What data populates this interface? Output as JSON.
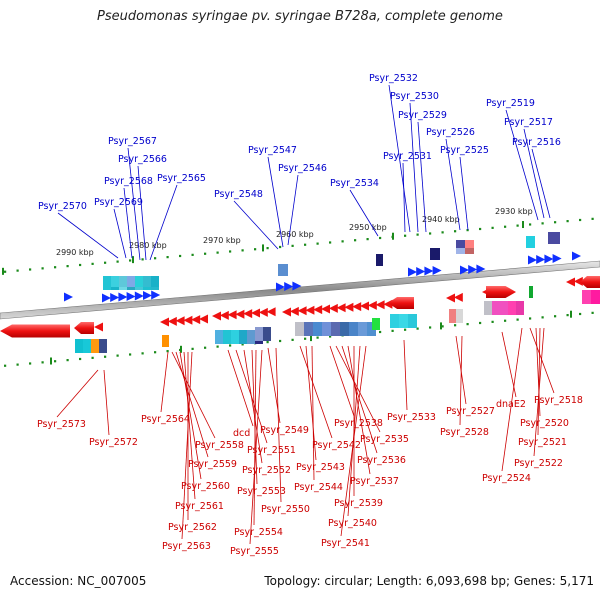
{
  "title": "Pseudomonas syringae pv. syringae B728a, complete genome",
  "footer": {
    "accession": "Accession: NC_007005",
    "summary": "Topology: circular; Length: 6,093,698 bp; Genes: 5,171"
  },
  "colors": {
    "forward_gene": "#1030ff",
    "reverse_gene": "#ee1111",
    "forward_label": "#0000cc",
    "reverse_label": "#cc0000",
    "backbone": "#9a9a9a",
    "scale_dots": "#1a8a1a"
  },
  "ticks": [
    "2990 kbp",
    "2980 kbp",
    "2970 kbp",
    "2960 kbp",
    "2950 kbp",
    "2940 kbp",
    "2930 kbp"
  ],
  "forward_labels": [
    "Psyr_2570",
    "Psyr_2569",
    "Psyr_2568",
    "Psyr_2567",
    "Psyr_2566",
    "Psyr_2565",
    "Psyr_2548",
    "Psyr_2547",
    "Psyr_2546",
    "Psyr_2534",
    "Psyr_2532",
    "Psyr_2530",
    "Psyr_2529",
    "Psyr_2531",
    "Psyr_2526",
    "Psyr_2525",
    "Psyr_2519",
    "Psyr_2517",
    "Psyr_2516"
  ],
  "reverse_labels": [
    "Psyr_2573",
    "Psyr_2572",
    "Psyr_2564",
    "Psyr_2558",
    "Psyr_2559",
    "Psyr_2560",
    "Psyr_2561",
    "Psyr_2562",
    "Psyr_2563",
    "dcd",
    "Psyr_2551",
    "Psyr_2552",
    "Psyr_2553",
    "Psyr_2554",
    "Psyr_2555",
    "Psyr_2549",
    "Psyr_2550",
    "Psyr_2542",
    "Psyr_2543",
    "Psyr_2544",
    "Psyr_2538",
    "Psyr_2535",
    "Psyr_2536",
    "Psyr_2537",
    "Psyr_2539",
    "Psyr_2540",
    "Psyr_2541",
    "Psyr_2533",
    "Psyr_2527",
    "Psyr_2528",
    "dnaE2",
    "Psyr_2518",
    "Psyr_2520",
    "Psyr_2521",
    "Psyr_2522",
    "Psyr_2524"
  ]
}
